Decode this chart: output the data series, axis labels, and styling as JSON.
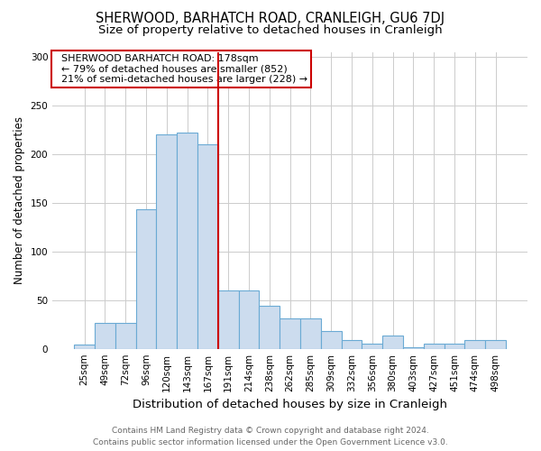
{
  "title": "SHERWOOD, BARHATCH ROAD, CRANLEIGH, GU6 7DJ",
  "subtitle": "Size of property relative to detached houses in Cranleigh",
  "xlabel": "Distribution of detached houses by size in Cranleigh",
  "ylabel": "Number of detached properties",
  "categories": [
    "25sqm",
    "49sqm",
    "72sqm",
    "96sqm",
    "120sqm",
    "143sqm",
    "167sqm",
    "191sqm",
    "214sqm",
    "238sqm",
    "262sqm",
    "285sqm",
    "309sqm",
    "332sqm",
    "356sqm",
    "380sqm",
    "403sqm",
    "427sqm",
    "451sqm",
    "474sqm",
    "498sqm"
  ],
  "values": [
    4,
    27,
    27,
    143,
    220,
    222,
    210,
    60,
    60,
    44,
    31,
    31,
    18,
    9,
    5,
    14,
    2,
    5,
    5,
    9,
    9
  ],
  "bar_color": "#ccdcee",
  "bar_edge_color": "#6aaad4",
  "bar_edge_width": 0.8,
  "red_line_x": 6.5,
  "red_line_color": "#cc0000",
  "annotation_text": "  SHERWOOD BARHATCH ROAD: 178sqm\n  ← 79% of detached houses are smaller (852)\n  21% of semi-detached houses are larger (228) →",
  "annotation_box_color": "#ffffff",
  "annotation_box_edge_color": "#cc0000",
  "ylim": [
    0,
    305
  ],
  "yticks": [
    0,
    50,
    100,
    150,
    200,
    250,
    300
  ],
  "footer_line1": "Contains HM Land Registry data © Crown copyright and database right 2024.",
  "footer_line2": "Contains public sector information licensed under the Open Government Licence v3.0.",
  "bg_color": "#ffffff",
  "grid_color": "#cccccc",
  "title_fontsize": 10.5,
  "subtitle_fontsize": 9.5,
  "xlabel_fontsize": 9.5,
  "ylabel_fontsize": 8.5,
  "tick_fontsize": 7.5,
  "annotation_fontsize": 8,
  "footer_fontsize": 6.5,
  "footer_color": "#666666"
}
